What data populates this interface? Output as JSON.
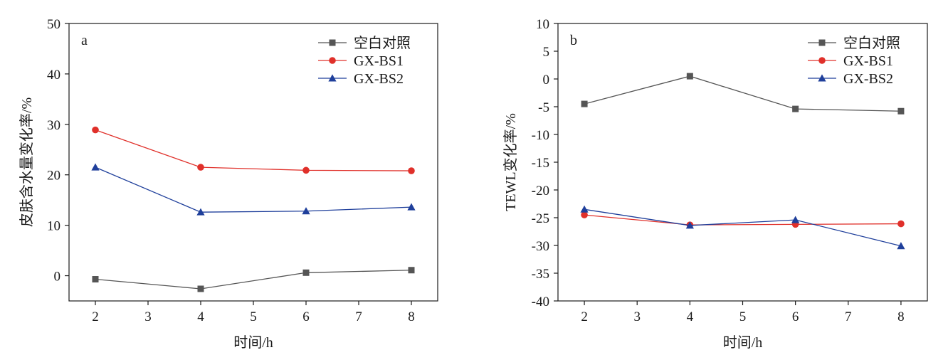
{
  "colors": {
    "blank": "#555555",
    "bs1": "#e0302a",
    "bs2": "#1f3f9b"
  },
  "chart_data": [
    {
      "type": "line",
      "panel_label": "a",
      "x": [
        2,
        4,
        6,
        8
      ],
      "xticks": [
        "2",
        "3",
        "4",
        "5",
        "6",
        "7",
        "8"
      ],
      "xlim": [
        1.5,
        8.5
      ],
      "yticks": [
        "0",
        "10",
        "20",
        "30",
        "40",
        "50"
      ],
      "ylim": [
        -5,
        50
      ],
      "xlabel": "时间/h",
      "ylabel": "皮肤含水量变化率/%",
      "legend_position": "top-right",
      "grid": false,
      "series": [
        {
          "name": "空白对照",
          "marker": "square",
          "color": "#555555",
          "values": [
            -0.7,
            -2.6,
            0.6,
            1.1
          ]
        },
        {
          "name": "GX-BS1",
          "marker": "circle",
          "color": "#e0302a",
          "values": [
            28.9,
            21.5,
            20.9,
            20.8
          ]
        },
        {
          "name": "GX-BS2",
          "marker": "triangle",
          "color": "#1f3f9b",
          "values": [
            21.5,
            12.6,
            12.8,
            13.6
          ]
        }
      ]
    },
    {
      "type": "line",
      "panel_label": "b",
      "x": [
        2,
        4,
        6,
        8
      ],
      "xticks": [
        "2",
        "3",
        "4",
        "5",
        "6",
        "7",
        "8"
      ],
      "xlim": [
        1.5,
        8.5
      ],
      "yticks": [
        "10",
        "5",
        "0",
        "-5",
        "-10",
        "-15",
        "-20",
        "-25",
        "-30",
        "-35",
        "-40"
      ],
      "ylim": [
        -40,
        10
      ],
      "xlabel": "时间/h",
      "ylabel": "TEWL变化率/%",
      "legend_position": "top-right",
      "grid": false,
      "series": [
        {
          "name": "空白对照",
          "marker": "square",
          "color": "#555555",
          "values": [
            -4.5,
            0.5,
            -5.4,
            -5.8
          ]
        },
        {
          "name": "GX-BS1",
          "marker": "circle",
          "color": "#e0302a",
          "values": [
            -24.5,
            -26.3,
            -26.2,
            -26.1
          ]
        },
        {
          "name": "GX-BS2",
          "marker": "triangle",
          "color": "#1f3f9b",
          "values": [
            -23.5,
            -26.4,
            -25.4,
            -30.1
          ]
        }
      ]
    }
  ]
}
